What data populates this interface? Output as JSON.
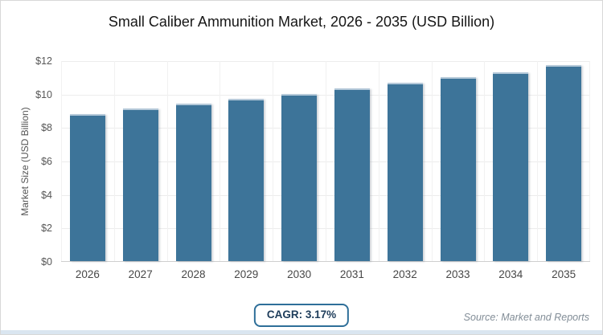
{
  "title": "Small Caliber Ammunition Market, 2026 - 2035 (USD Billion)",
  "y_axis_title": "Market Size (USD Billion)",
  "cagr_label": "CAGR: 3.17%",
  "source": "Source: Market and Reports",
  "colors": {
    "bar": "#3d7499",
    "bar_top_edge": "#b5c9d9",
    "grid": "#ececec",
    "grid_v": "#f1f1f1",
    "axis_line": "#cfcfcf",
    "badge_border": "#2e6f99",
    "badge_text": "#1d3c5a",
    "source_text": "#828d97",
    "bottom_strip": "#dae6f0"
  },
  "chart_data": {
    "type": "bar",
    "title": "Small Caliber Ammunition Market, 2026 - 2035 (USD Billion)",
    "categories": [
      "2026",
      "2027",
      "2028",
      "2029",
      "2030",
      "2031",
      "2032",
      "2033",
      "2034",
      "2035"
    ],
    "values": [
      8.8,
      9.1,
      9.4,
      9.7,
      10.0,
      10.3,
      10.65,
      11.0,
      11.3,
      11.7
    ],
    "xlabel": "",
    "ylabel": "Market Size (USD Billion)",
    "ylim": [
      0,
      12
    ],
    "ytick_step": 2,
    "ytick_labels": [
      "$0",
      "$2",
      "$4",
      "$6",
      "$8",
      "$10",
      "$12"
    ],
    "grid": true,
    "legend": false,
    "annotations": [
      "CAGR: 3.17%",
      "Source: Market and Reports"
    ]
  }
}
